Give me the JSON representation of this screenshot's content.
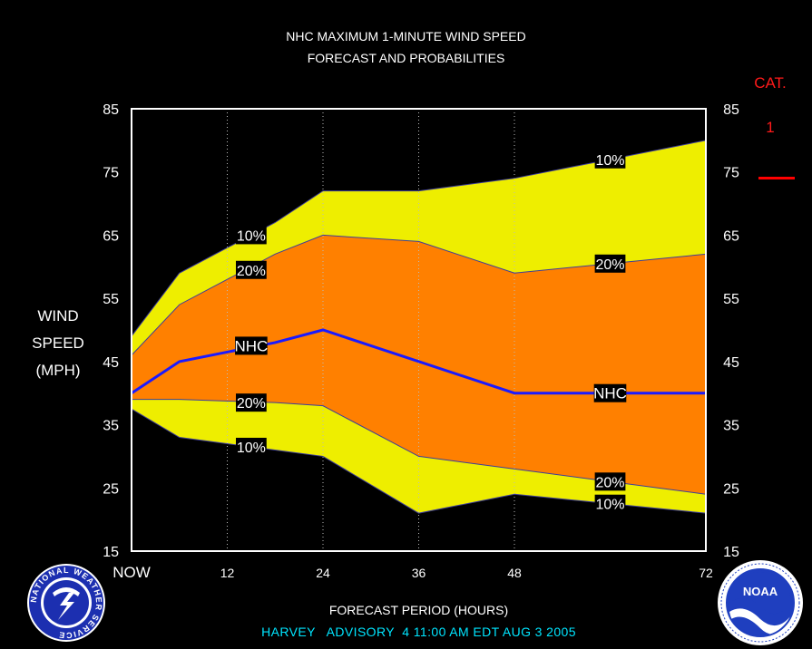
{
  "title_line1": "NHC MAXIMUM 1-MINUTE WIND SPEED",
  "title_line2": "FORECAST AND PROBABILITIES",
  "y_label": [
    "WIND",
    "SPEED",
    "(MPH)"
  ],
  "x_label": "FORECAST PERIOD (HOURS)",
  "advisory": "HARVEY   ADVISORY  4 11:00 AM EDT AUG 3 2005",
  "category": {
    "label": "CAT.",
    "value": "1",
    "color": "#ff0000"
  },
  "logos": {
    "left": "NATIONAL WEATHER SERVICE",
    "right": "NOAA"
  },
  "colors": {
    "yellow": "#eeee00",
    "orange": "#ff8000",
    "nhc_line": "#1a1aff",
    "background": "#000000"
  },
  "chart_data": {
    "type": "area",
    "x": [
      0,
      6,
      18,
      24,
      36,
      48,
      72
    ],
    "x_ticks": [
      0,
      12,
      24,
      36,
      48,
      72
    ],
    "x_tick_labels": [
      "NOW",
      "12",
      "24",
      "36",
      "48",
      "72"
    ],
    "ylim": [
      15,
      85
    ],
    "y_ticks": [
      15,
      25,
      35,
      45,
      55,
      65,
      75,
      85
    ],
    "grid": "vertical dotted at forecast hours",
    "series": [
      {
        "name": "10%",
        "values": [
          49,
          59,
          67,
          72,
          72,
          74,
          80
        ]
      },
      {
        "name": "20%",
        "values": [
          46,
          54,
          62,
          65,
          64,
          59,
          62
        ]
      },
      {
        "name": "NHC",
        "values": [
          40,
          45,
          48,
          50,
          45,
          40,
          40
        ]
      },
      {
        "name": "20%",
        "values": [
          39,
          39,
          38.5,
          38,
          30,
          28,
          24
        ]
      },
      {
        "name": "10%",
        "values": [
          37.5,
          33,
          31,
          30,
          21,
          24,
          21
        ]
      }
    ],
    "labels": [
      {
        "text": "10%",
        "x": 15,
        "y": 65
      },
      {
        "text": "20%",
        "x": 15,
        "y": 59.5
      },
      {
        "text": "NHC",
        "x": 15,
        "y": 47.5
      },
      {
        "text": "20%",
        "x": 15,
        "y": 38.5
      },
      {
        "text": "10%",
        "x": 15,
        "y": 31.5
      },
      {
        "text": "10%",
        "x": 60,
        "y": 77
      },
      {
        "text": "20%",
        "x": 60,
        "y": 60.5
      },
      {
        "text": "NHC",
        "x": 60,
        "y": 40
      },
      {
        "text": "20%",
        "x": 60,
        "y": 26
      },
      {
        "text": "10%",
        "x": 60,
        "y": 22.5
      }
    ]
  }
}
